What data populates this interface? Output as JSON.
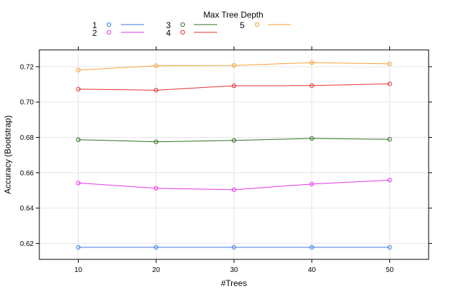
{
  "chart_data": {
    "type": "line",
    "title": "",
    "xlabel": "#Trees",
    "ylabel": "Accuracy (Bootstrap)",
    "legend_title": "Max Tree Depth",
    "legend_position": "top",
    "grid": true,
    "x": [
      10,
      20,
      30,
      40,
      50
    ],
    "x_ticks": [
      "10",
      "20",
      "30",
      "40",
      "50"
    ],
    "y_ticks": [
      "0.62",
      "0.64",
      "0.66",
      "0.68",
      "0.70",
      "0.72"
    ],
    "xlim": [
      5,
      55
    ],
    "ylim": [
      0.611,
      0.7295
    ],
    "series": [
      {
        "name": "1",
        "color": "#3a7be0",
        "values": [
          0.6178,
          0.6178,
          0.6178,
          0.6178,
          0.6178
        ]
      },
      {
        "name": "2",
        "color": "#e633e6",
        "values": [
          0.6542,
          0.6512,
          0.6504,
          0.6536,
          0.6558
        ]
      },
      {
        "name": "3",
        "color": "#2e6e1e",
        "values": [
          0.6787,
          0.6775,
          0.6783,
          0.6794,
          0.6789
        ]
      },
      {
        "name": "4",
        "color": "#e62e2e",
        "values": [
          0.7073,
          0.7067,
          0.7092,
          0.7093,
          0.7103
        ]
      },
      {
        "name": "5",
        "color": "#f5a033",
        "values": [
          0.7181,
          0.7205,
          0.7207,
          0.7223,
          0.7216
        ]
      }
    ]
  }
}
